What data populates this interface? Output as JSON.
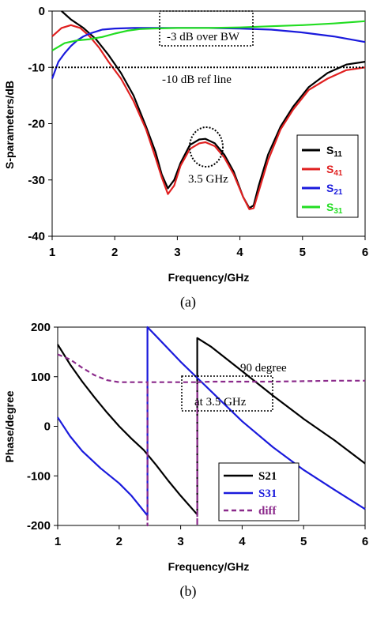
{
  "chart_data": [
    {
      "type": "line",
      "caption": "(a)",
      "xlabel": "Frequency/GHz",
      "ylabel": "S-parameters/dB",
      "xlim": [
        1,
        6
      ],
      "ylim": [
        -40,
        0
      ],
      "xticks": [
        1,
        2,
        3,
        4,
        5,
        6
      ],
      "yticks": [
        0,
        -10,
        -20,
        -30,
        -40
      ],
      "grid": false,
      "legend": "right",
      "series": [
        {
          "name": "S11",
          "label_base": "S",
          "label_sub": "11",
          "color": "#000000",
          "x": [
            1.15,
            1.3,
            1.5,
            1.7,
            1.9,
            2.1,
            2.3,
            2.5,
            2.65,
            2.75,
            2.85,
            2.95,
            3.05,
            3.2,
            3.35,
            3.45,
            3.6,
            3.75,
            3.9,
            4.05,
            4.15,
            4.22,
            4.3,
            4.45,
            4.65,
            4.85,
            5.1,
            5.4,
            5.7,
            6.0
          ],
          "y": [
            0,
            -1.5,
            -3,
            -5,
            -7.8,
            -11,
            -15,
            -20.5,
            -25,
            -29,
            -31.5,
            -30,
            -27,
            -23.8,
            -22.8,
            -22.7,
            -23.5,
            -25.5,
            -28.5,
            -33,
            -35,
            -34.5,
            -31,
            -25.5,
            -20.5,
            -17,
            -13.5,
            -11,
            -9.5,
            -9
          ]
        },
        {
          "name": "S41",
          "label_base": "S",
          "label_sub": "41",
          "color": "#e02020",
          "x": [
            1.0,
            1.15,
            1.3,
            1.45,
            1.6,
            1.75,
            1.9,
            2.1,
            2.3,
            2.5,
            2.65,
            2.75,
            2.85,
            2.95,
            3.05,
            3.2,
            3.35,
            3.45,
            3.6,
            3.75,
            3.9,
            4.05,
            4.15,
            4.22,
            4.3,
            4.45,
            4.65,
            4.85,
            5.1,
            5.4,
            5.7,
            6.0
          ],
          "y": [
            -4.5,
            -3,
            -2.5,
            -3,
            -4.5,
            -6.5,
            -9,
            -12,
            -16,
            -21,
            -26,
            -29.5,
            -32.5,
            -31,
            -27.5,
            -24.5,
            -23.5,
            -23.3,
            -24,
            -26,
            -29,
            -33,
            -35.2,
            -35,
            -32,
            -26.5,
            -21,
            -17.5,
            -14,
            -12,
            -10.5,
            -10
          ]
        },
        {
          "name": "S21",
          "label_base": "S",
          "label_sub": "21",
          "color": "#1a1adc",
          "x": [
            1.0,
            1.1,
            1.2,
            1.3,
            1.4,
            1.5,
            1.6,
            1.8,
            2.0,
            2.3,
            2.6,
            3.0,
            3.5,
            4.0,
            4.5,
            5.0,
            5.5,
            6.0
          ],
          "y": [
            -12,
            -9,
            -7.5,
            -6.2,
            -5.2,
            -4.5,
            -4,
            -3.3,
            -3.1,
            -3,
            -3,
            -3,
            -3,
            -3.1,
            -3.3,
            -3.8,
            -4.5,
            -5.5
          ]
        },
        {
          "name": "S31",
          "label_base": "S",
          "label_sub": "31",
          "color": "#22dd22",
          "x": [
            1.0,
            1.2,
            1.4,
            1.6,
            1.8,
            2.0,
            2.2,
            2.4,
            2.6,
            3.0,
            3.5,
            4.0,
            4.5,
            5.0,
            5.5,
            6.0
          ],
          "y": [
            -7,
            -5.7,
            -5.2,
            -5,
            -4.6,
            -4,
            -3.5,
            -3.2,
            -3.1,
            -3,
            -3,
            -2.9,
            -2.7,
            -2.5,
            -2.2,
            -1.8
          ]
        }
      ],
      "annotations": [
        {
          "id": "bw",
          "text": "-3 dB over BW"
        },
        {
          "id": "ref",
          "text": "-10 dB ref line"
        },
        {
          "id": "freq",
          "text": "3.5 GHz"
        }
      ]
    },
    {
      "type": "line",
      "caption": "(b)",
      "xlabel": "Frequency/GHz",
      "ylabel": "Phase/degree",
      "xlim": [
        1,
        6
      ],
      "ylim": [
        -200,
        200
      ],
      "xticks": [
        1,
        2,
        3,
        4,
        5,
        6
      ],
      "yticks": [
        200,
        100,
        0,
        -100,
        -200
      ],
      "grid": false,
      "legend": "bottom-right",
      "series": [
        {
          "name": "S21",
          "color": "#000000",
          "style": "solid",
          "x": [
            1.0,
            1.2,
            1.4,
            1.6,
            1.8,
            2.0,
            2.2,
            2.4,
            2.6,
            2.8,
            3.0,
            3.27,
            3.27,
            3.27,
            3.5,
            4.0,
            4.5,
            5.0,
            5.5,
            6.0
          ],
          "y": [
            165,
            125,
            90,
            58,
            28,
            0,
            -25,
            -48,
            -78,
            -110,
            -140,
            -178,
            -178,
            178,
            160,
            111,
            62,
            15,
            -28,
            -75
          ]
        },
        {
          "name": "S31",
          "color": "#1a1adc",
          "style": "solid",
          "x": [
            1.0,
            1.2,
            1.4,
            1.7,
            2.0,
            2.2,
            2.46,
            2.46,
            2.46,
            2.6,
            3.0,
            3.5,
            4.0,
            4.5,
            5.0,
            5.5,
            6.0
          ],
          "y": [
            18,
            -20,
            -50,
            -85,
            -115,
            -140,
            -180,
            -180,
            200,
            182,
            130,
            70,
            10,
            -42,
            -88,
            -128,
            -167
          ]
        },
        {
          "name": "diff",
          "color": "#8b2a8b",
          "style": "dashed",
          "x": [
            1.0,
            1.2,
            1.4,
            1.6,
            1.8,
            2.0,
            2.2,
            2.46,
            2.46,
            2.46,
            3.27,
            3.27,
            3.27,
            3.5,
            4.0,
            4.5,
            5.0,
            5.5,
            6.0
          ],
          "y": [
            145,
            135,
            118,
            103,
            93,
            89,
            89,
            89,
            -200,
            89,
            89,
            -200,
            89,
            90,
            90,
            90,
            91,
            92,
            92
          ]
        }
      ],
      "annotations": [
        {
          "id": "deg",
          "text": "90 degree"
        },
        {
          "id": "at",
          "text": "at 3.5 GHz"
        }
      ]
    }
  ]
}
